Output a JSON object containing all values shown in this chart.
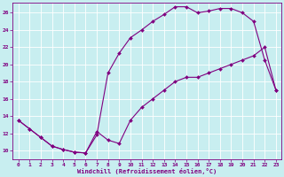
{
  "xlabel": "Windchill (Refroidissement éolien,°C)",
  "background_color": "#c8eef0",
  "line_color": "#800080",
  "grid_color": "#ffffff",
  "xlim": [
    -0.5,
    23.5
  ],
  "ylim": [
    9.0,
    27.2
  ],
  "xticks": [
    0,
    1,
    2,
    3,
    4,
    5,
    6,
    7,
    8,
    9,
    10,
    11,
    12,
    13,
    14,
    15,
    16,
    17,
    18,
    19,
    20,
    21,
    22,
    23
  ],
  "yticks": [
    10,
    12,
    14,
    16,
    18,
    20,
    22,
    24,
    26
  ],
  "line1_x": [
    0,
    1,
    2,
    3,
    4,
    5,
    6,
    7,
    8,
    9,
    10,
    11,
    12,
    13,
    14,
    15,
    16,
    17,
    18,
    19,
    20,
    21,
    22,
    23
  ],
  "line1_y": [
    13.5,
    12.5,
    11.5,
    10.5,
    10.1,
    9.8,
    9.7,
    11.8,
    19.0,
    21.3,
    23.1,
    24.0,
    25.0,
    25.8,
    26.7,
    26.7,
    26.0,
    26.2,
    26.5,
    26.5,
    26.0,
    25.0,
    20.5,
    17.0
  ],
  "line2_x": [
    0,
    1,
    2,
    3,
    4,
    5,
    6,
    7,
    8,
    9,
    10,
    11,
    12,
    13,
    14,
    15,
    16,
    17,
    18,
    19,
    20,
    21,
    22,
    23
  ],
  "line2_y": [
    13.5,
    12.5,
    11.5,
    10.5,
    10.1,
    9.8,
    9.7,
    12.2,
    11.2,
    10.8,
    13.5,
    15.0,
    16.0,
    17.0,
    18.0,
    18.5,
    18.5,
    19.0,
    19.5,
    20.0,
    20.5,
    21.0,
    22.0,
    17.0
  ],
  "figsize": [
    3.2,
    2.0
  ],
  "dpi": 100
}
